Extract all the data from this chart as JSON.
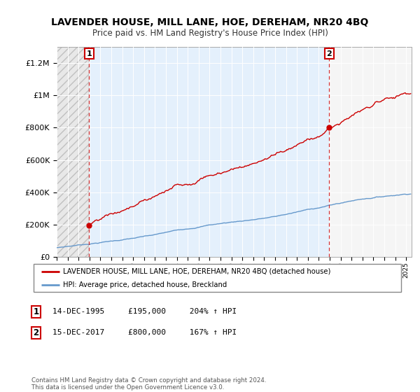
{
  "title": "LAVENDER HOUSE, MILL LANE, HOE, DEREHAM, NR20 4BQ",
  "subtitle": "Price paid vs. HM Land Registry's House Price Index (HPI)",
  "red_color": "#cc0000",
  "blue_color": "#6699cc",
  "blue_fill_color": "#ddeeff",
  "hatch_fill_color": "#e0e0e0",
  "sale1_date": 1995.96,
  "sale1_price": 195000,
  "sale2_date": 2017.96,
  "sale2_price": 800000,
  "ylim_min": 0,
  "ylim_max": 1300000,
  "xlim_min": 1993.0,
  "xlim_max": 2025.5,
  "yticks": [
    0,
    200000,
    400000,
    600000,
    800000,
    1000000,
    1200000
  ],
  "ylabels": [
    "£0",
    "£200K",
    "£400K",
    "£600K",
    "£800K",
    "£1M",
    "£1.2M"
  ],
  "legend_entries": [
    "LAVENDER HOUSE, MILL LANE, HOE, DEREHAM, NR20 4BQ (detached house)",
    "HPI: Average price, detached house, Breckland"
  ],
  "footnote": "Contains HM Land Registry data © Crown copyright and database right 2024.\nThis data is licensed under the Open Government Licence v3.0.",
  "table_rows": [
    [
      "1",
      "14-DEC-1995",
      "£195,000",
      "204% ↑ HPI"
    ],
    [
      "2",
      "15-DEC-2017",
      "£800,000",
      "167% ↑ HPI"
    ]
  ]
}
